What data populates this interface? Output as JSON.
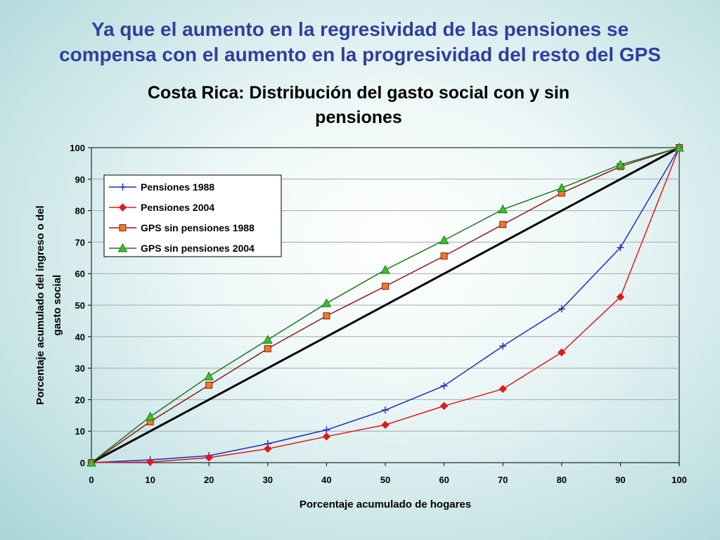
{
  "slide_title_line1": "Ya que el aumento en la regresividad de las pensiones se",
  "slide_title_line2": "compensa con el aumento en la progresividad del resto del GPS",
  "chart_data": {
    "type": "line",
    "title_line1": "Costa Rica: Distribución del gasto social con y sin",
    "title_line2": "pensiones",
    "xlabel": "Porcentaje acumulado de hogares",
    "ylabel_line1": "Porcentaje acumulado del ingreso o del",
    "ylabel_line2": "gasto social",
    "x": [
      0,
      10,
      20,
      30,
      40,
      50,
      60,
      70,
      80,
      90,
      100
    ],
    "xlim": [
      0,
      100
    ],
    "ylim": [
      0,
      100
    ],
    "xticks": [
      "0",
      "10",
      "20",
      "30",
      "40",
      "50",
      "60",
      "70",
      "80",
      "90",
      "100"
    ],
    "yticks": [
      "0",
      "10",
      "20",
      "30",
      "40",
      "50",
      "60",
      "70",
      "80",
      "90",
      "100"
    ],
    "grid": "horizontal",
    "legend_position": "top-left",
    "equality_line": {
      "points": [
        [
          0,
          0
        ],
        [
          100,
          100
        ]
      ],
      "color": "#000000"
    },
    "series": [
      {
        "name": "Pensiones 1988",
        "color": "#1f2fb8",
        "marker": "plus",
        "values": [
          0,
          0.9,
          2.2,
          6,
          10.4,
          16.7,
          24.4,
          37,
          48.8,
          68.3,
          100
        ]
      },
      {
        "name": "Pensiones 2004",
        "color": "#e01a1a",
        "marker": "diamond",
        "values": [
          0,
          0.2,
          1.6,
          4.4,
          8.3,
          12,
          18,
          23.4,
          35,
          52.6,
          100
        ]
      },
      {
        "name": "GPS sin pensiones 1988",
        "color": "#8b1a1a",
        "fill": "#f07b20",
        "marker": "square",
        "values": [
          0,
          13,
          24.6,
          36.2,
          46.6,
          56,
          65.6,
          75.6,
          85.6,
          94,
          100
        ]
      },
      {
        "name": "GPS sin pensiones 2004",
        "color": "#1a7a1a",
        "fill": "#3cbf2e",
        "marker": "triangle",
        "values": [
          0,
          14.6,
          27.4,
          39,
          50.6,
          61.2,
          70.6,
          80.4,
          87.2,
          94.6,
          100
        ]
      }
    ]
  }
}
